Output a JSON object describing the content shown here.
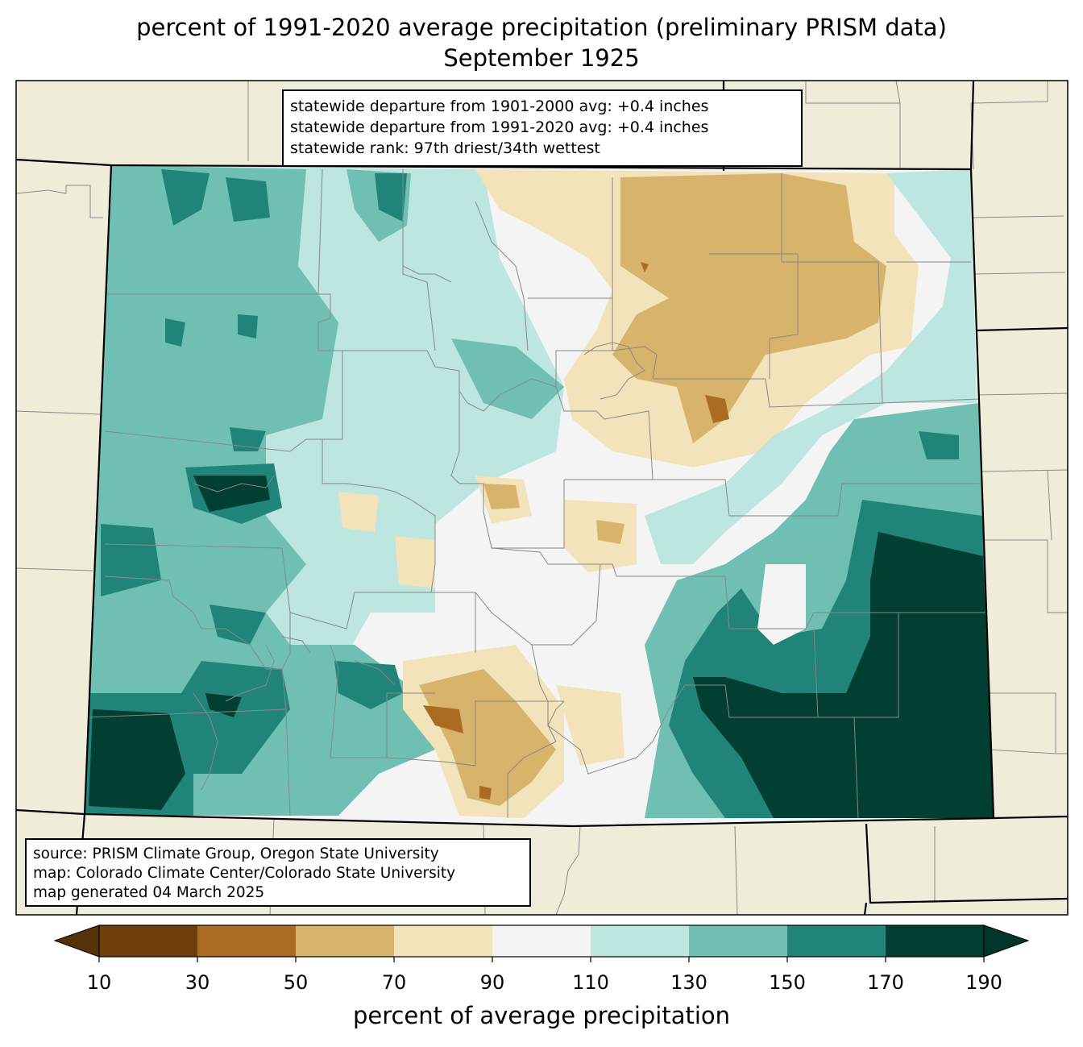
{
  "title": {
    "line1": "percent of 1991-2020 average precipitation (preliminary PRISM data)",
    "line2": "September 1925"
  },
  "stats": {
    "line1": "statewide departure from 1901-2000 avg: +0.4 inches",
    "line2": "statewide departure from 1991-2020 avg: +0.4 inches",
    "line3": "statewide rank: 97th driest/34th wettest"
  },
  "source": {
    "line1": "source: PRISM Climate Group, Oregon State University",
    "line2": "map: Colorado Climate Center/Colorado State University",
    "line3": "map generated 04 March 2025"
  },
  "colorbar": {
    "label": "percent of average precipitation",
    "ticks": [
      "10",
      "30",
      "50",
      "70",
      "90",
      "110",
      "130",
      "150",
      "170",
      "190"
    ],
    "bins": [
      {
        "from": 10,
        "to": 30,
        "color": "#6f3f0b"
      },
      {
        "from": 30,
        "to": 50,
        "color": "#a96c22"
      },
      {
        "from": 50,
        "to": 70,
        "color": "#d8b36c"
      },
      {
        "from": 70,
        "to": 90,
        "color": "#f3e3bb"
      },
      {
        "from": 90,
        "to": 110,
        "color": "#f3f4f3"
      },
      {
        "from": 110,
        "to": 130,
        "color": "#bde6e0"
      },
      {
        "from": 130,
        "to": 150,
        "color": "#6fc0b3"
      },
      {
        "from": 150,
        "to": 170,
        "color": "#208479"
      },
      {
        "from": 170,
        "to": 190,
        "color": "#003f32"
      }
    ],
    "under_color": "#553209",
    "over_color": "#00362b"
  },
  "map_colors": {
    "land": "#efedda",
    "county_line": "#888888",
    "state_line": "#000000"
  }
}
